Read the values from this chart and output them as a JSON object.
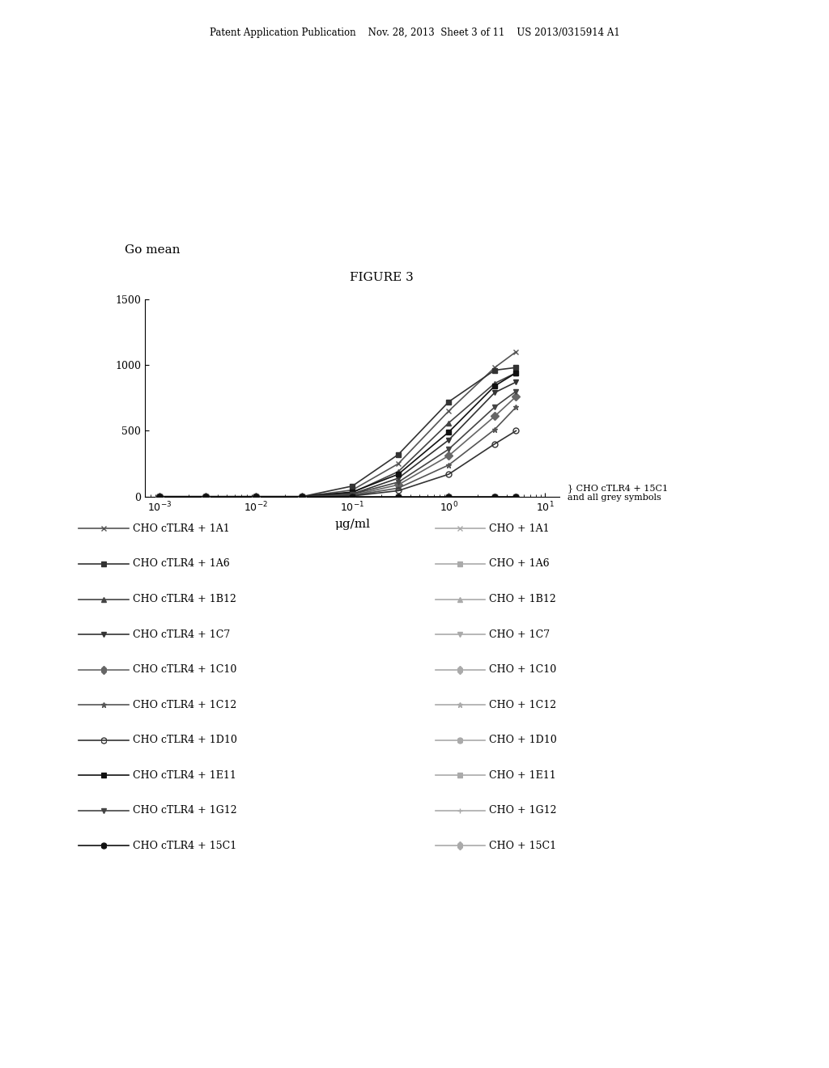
{
  "header": "Patent Application Publication    Nov. 28, 2013  Sheet 3 of 11    US 2013/0315914 A1",
  "figure_title": "FIGURE 3",
  "ylabel": "Go mean",
  "xlabel": "μg/ml",
  "annotation": "CHO cTLR4 + 15C1\nand all grey symbols",
  "x_points": [
    0.001,
    0.003,
    0.01,
    0.03,
    0.1,
    0.3,
    1.0,
    3.0,
    5.0
  ],
  "dark_series": [
    {
      "label": "CHO cTLR4 + 1A1",
      "color": "#555555",
      "marker": "x",
      "mfc": "#555555",
      "y": [
        0,
        0,
        0,
        0,
        50,
        250,
        650,
        980,
        1100
      ]
    },
    {
      "label": "CHO cTLR4 + 1A6",
      "color": "#333333",
      "marker": "s",
      "mfc": "#333333",
      "y": [
        0,
        0,
        0,
        0,
        80,
        320,
        720,
        960,
        980
      ]
    },
    {
      "label": "CHO cTLR4 + 1B12",
      "color": "#444444",
      "marker": "^",
      "mfc": "#444444",
      "y": [
        0,
        0,
        0,
        0,
        30,
        190,
        560,
        860,
        940
      ]
    },
    {
      "label": "CHO cTLR4 + 1C7",
      "color": "#333333",
      "marker": "v",
      "mfc": "#333333",
      "y": [
        0,
        0,
        0,
        0,
        20,
        140,
        430,
        790,
        870
      ]
    },
    {
      "label": "CHO cTLR4 + 1C10",
      "color": "#666666",
      "marker": "D",
      "mfc": "#666666",
      "y": [
        0,
        0,
        0,
        0,
        10,
        90,
        310,
        610,
        760
      ]
    },
    {
      "label": "CHO cTLR4 + 1C12",
      "color": "#555555",
      "marker": "*",
      "mfc": "#555555",
      "y": [
        0,
        0,
        0,
        0,
        8,
        65,
        240,
        510,
        680
      ]
    },
    {
      "label": "CHO cTLR4 + 1D10",
      "color": "#333333",
      "marker": "o",
      "mfc": "none",
      "y": [
        0,
        0,
        0,
        0,
        5,
        45,
        170,
        400,
        500
      ]
    },
    {
      "label": "CHO cTLR4 + 1E11",
      "color": "#111111",
      "marker": "s",
      "mfc": "#111111",
      "y": [
        0,
        0,
        0,
        0,
        35,
        170,
        490,
        840,
        940
      ]
    },
    {
      "label": "CHO cTLR4 + 1G12",
      "color": "#444444",
      "marker": "v",
      "mfc": "#444444",
      "y": [
        0,
        0,
        0,
        0,
        18,
        110,
        360,
        680,
        800
      ]
    },
    {
      "label": "CHO cTLR4 + 15C1",
      "color": "#111111",
      "marker": "o",
      "mfc": "#111111",
      "y": [
        0,
        0,
        0,
        0,
        0,
        0,
        0,
        0,
        0
      ]
    }
  ],
  "grey_series": [
    {
      "label": "CHO + 1A1",
      "color": "#aaaaaa",
      "marker": "x"
    },
    {
      "label": "CHO + 1A6",
      "color": "#aaaaaa",
      "marker": "s"
    },
    {
      "label": "CHO + 1B12",
      "color": "#aaaaaa",
      "marker": "^"
    },
    {
      "label": "CHO + 1C7",
      "color": "#aaaaaa",
      "marker": "v"
    },
    {
      "label": "CHO + 1C10",
      "color": "#aaaaaa",
      "marker": "D"
    },
    {
      "label": "CHO + 1C12",
      "color": "#aaaaaa",
      "marker": "*"
    },
    {
      "label": "CHO + 1D10",
      "color": "#aaaaaa",
      "marker": "o"
    },
    {
      "label": "CHO + 1E11",
      "color": "#aaaaaa",
      "marker": "s"
    },
    {
      "label": "CHO + 1G12",
      "color": "#aaaaaa",
      "marker": "+"
    },
    {
      "label": "CHO + 15C1",
      "color": "#aaaaaa",
      "marker": "D"
    }
  ],
  "legend_left_markers": [
    "x",
    "s",
    "^",
    "v",
    "D",
    "*",
    "o",
    "s",
    "v",
    "o"
  ],
  "legend_left_colors": [
    "#555555",
    "#333333",
    "#444444",
    "#333333",
    "#666666",
    "#555555",
    "#333333",
    "#111111",
    "#444444",
    "#111111"
  ],
  "legend_left_mfc": [
    "#555555",
    "#333333",
    "#444444",
    "#333333",
    "#666666",
    "#555555",
    "none",
    "#111111",
    "#444444",
    "#111111"
  ],
  "legend_left_labels": [
    "CHO cTLR4 + 1A1",
    "CHO cTLR4 + 1A6",
    "CHO cTLR4 + 1B12",
    "CHO cTLR4 + 1C7",
    "CHO cTLR4 + 1C10",
    "CHO cTLR4 + 1C12",
    "CHO cTLR4 + 1D10",
    "CHO cTLR4 + 1E11",
    "CHO cTLR4 + 1G12",
    "CHO cTLR4 + 15C1"
  ],
  "legend_right_markers": [
    "x",
    "s",
    "^",
    "v",
    "D",
    "*",
    "o",
    "s",
    "+",
    "D"
  ],
  "legend_right_colors": [
    "#aaaaaa",
    "#aaaaaa",
    "#aaaaaa",
    "#aaaaaa",
    "#aaaaaa",
    "#aaaaaa",
    "#aaaaaa",
    "#aaaaaa",
    "#aaaaaa",
    "#aaaaaa"
  ],
  "legend_right_labels": [
    "CHO + 1A1",
    "CHO + 1A6",
    "CHO + 1B12",
    "CHO + 1C7",
    "CHO + 1C10",
    "CHO + 1C12",
    "CHO + 1D10",
    "CHO + 1E11",
    "CHO + 1G12",
    "CHO + 15C1"
  ]
}
